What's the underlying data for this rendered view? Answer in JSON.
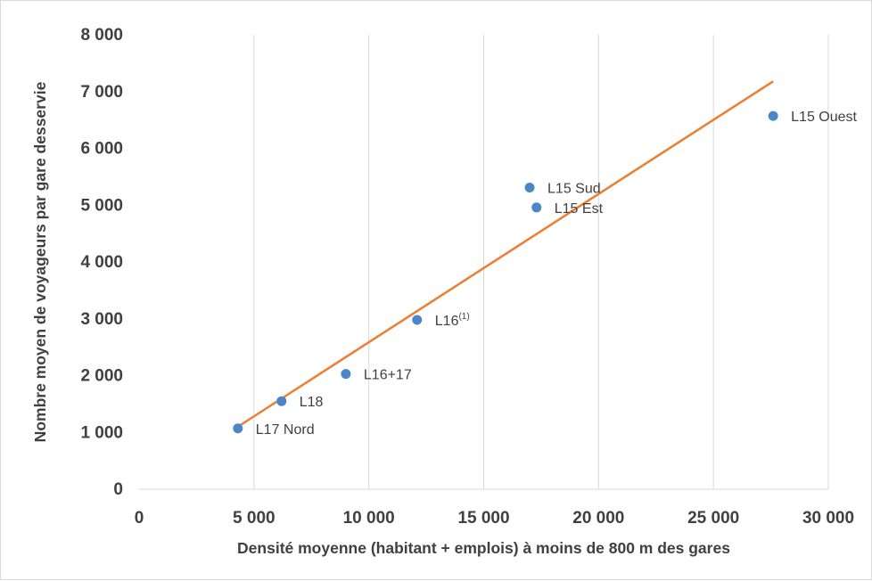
{
  "chart_data": {
    "type": "scatter",
    "title": "",
    "xlabel": "Densité moyenne (habitant + emplois) à moins de 800 m des gares",
    "ylabel": "Nombre moyen de voyageurs par gare desservie",
    "xlim": [
      0,
      30000
    ],
    "ylim": [
      0,
      8000
    ],
    "x_ticks": [
      0,
      5000,
      10000,
      15000,
      20000,
      25000,
      30000
    ],
    "x_tick_labels": [
      "0",
      "5 000",
      "10 000",
      "15 000",
      "20 000",
      "25 000",
      "30 000"
    ],
    "y_ticks": [
      0,
      1000,
      2000,
      3000,
      4000,
      5000,
      6000,
      7000,
      8000
    ],
    "y_tick_labels": [
      "0",
      "1 000",
      "2 000",
      "3 000",
      "4 000",
      "5 000",
      "6 000",
      "7 000",
      "8 000"
    ],
    "grid": "vertical",
    "points": [
      {
        "label": "L17 Nord",
        "sup": "",
        "x": 4300,
        "y": 1070
      },
      {
        "label": "L18",
        "sup": "",
        "x": 6200,
        "y": 1550
      },
      {
        "label": "L16+17",
        "sup": "",
        "x": 9000,
        "y": 2030
      },
      {
        "label": "L16",
        "sup": "(1)",
        "x": 12100,
        "y": 2980
      },
      {
        "label": "L15 Sud",
        "sup": "",
        "x": 17000,
        "y": 5310
      },
      {
        "label": "L15 Est",
        "sup": "",
        "x": 17300,
        "y": 4960
      },
      {
        "label": "L15 Ouest",
        "sup": "",
        "x": 27600,
        "y": 6570
      }
    ],
    "trendline": {
      "x": [
        4300,
        27600
      ],
      "y": [
        1100,
        7180
      ]
    },
    "colors": {
      "points": "#4a86c8",
      "trendline": "#ed7d31",
      "grid": "#d9d9d9",
      "text": "#404040"
    }
  }
}
